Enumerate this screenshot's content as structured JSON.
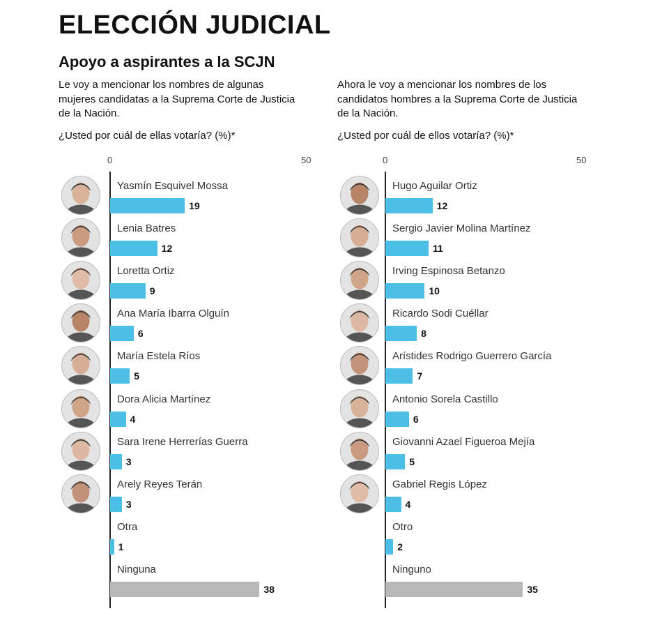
{
  "header": {
    "title": "ELECCIÓN JUDICIAL",
    "subtitle": "Apoyo a aspirantes a la SCJN"
  },
  "colors": {
    "bar": "#4cbfe6",
    "bar_other": "#b8b8b8",
    "axis": "#222222"
  },
  "chart_data": [
    {
      "type": "bar",
      "orientation": "horizontal",
      "description": "Le voy a mencionar los nombres de algunas mujeres candidatas a la Suprema Corte de Justicia de la Nación.",
      "question": "¿Usted por cuál de ellas votaría? (%)*",
      "xlim": [
        0,
        50
      ],
      "ticks": [
        "0",
        "50"
      ],
      "categories": [
        "Yasmín Esquivel Mossa",
        "Lenia Batres",
        "Loretta Ortiz",
        "Ana María Ibarra Olguín",
        "María Estela Ríos",
        "Dora Alicia Martínez",
        "Sara Irene Herrerías Guerra",
        "Arely Reyes Terán",
        "Otra",
        "Ninguna"
      ],
      "values": [
        19,
        12,
        9,
        6,
        5,
        4,
        3,
        3,
        1,
        38
      ],
      "labels": [
        "19",
        "12",
        "9",
        "6",
        "5",
        "4",
        "3",
        "3",
        "1",
        "38"
      ],
      "has_photo": [
        true,
        true,
        true,
        true,
        true,
        true,
        true,
        true,
        false,
        false
      ],
      "highlight": [
        true,
        true,
        true,
        true,
        true,
        true,
        true,
        true,
        true,
        false
      ]
    },
    {
      "type": "bar",
      "orientation": "horizontal",
      "description": "Ahora le voy a mencionar los nombres de los candidatos hombres a la Suprema Corte de Justicia de la Nación.",
      "question": "¿Usted por cuál de ellos votaría? (%)*",
      "xlim": [
        0,
        50
      ],
      "ticks": [
        "0",
        "50"
      ],
      "categories": [
        "Hugo Aguilar Ortiz",
        "Sergio Javier Molina Martínez",
        "Irving Espinosa Betanzo",
        "Ricardo Sodi Cuéllar",
        "Arístides Rodrigo Guerrero García",
        "Antonio Sorela Castillo",
        "Giovanni Azael Figueroa Mejía",
        "Gabriel Regis López",
        "Otro",
        "Ninguno"
      ],
      "values": [
        12,
        11,
        10,
        8,
        7,
        6,
        5,
        4,
        2,
        35
      ],
      "labels": [
        "12",
        "11",
        "10",
        "8",
        "7",
        "6",
        "5",
        "4",
        "2",
        "35"
      ],
      "has_photo": [
        true,
        true,
        true,
        true,
        true,
        true,
        true,
        true,
        false,
        false
      ],
      "highlight": [
        true,
        true,
        true,
        true,
        true,
        true,
        true,
        true,
        true,
        false
      ]
    }
  ]
}
